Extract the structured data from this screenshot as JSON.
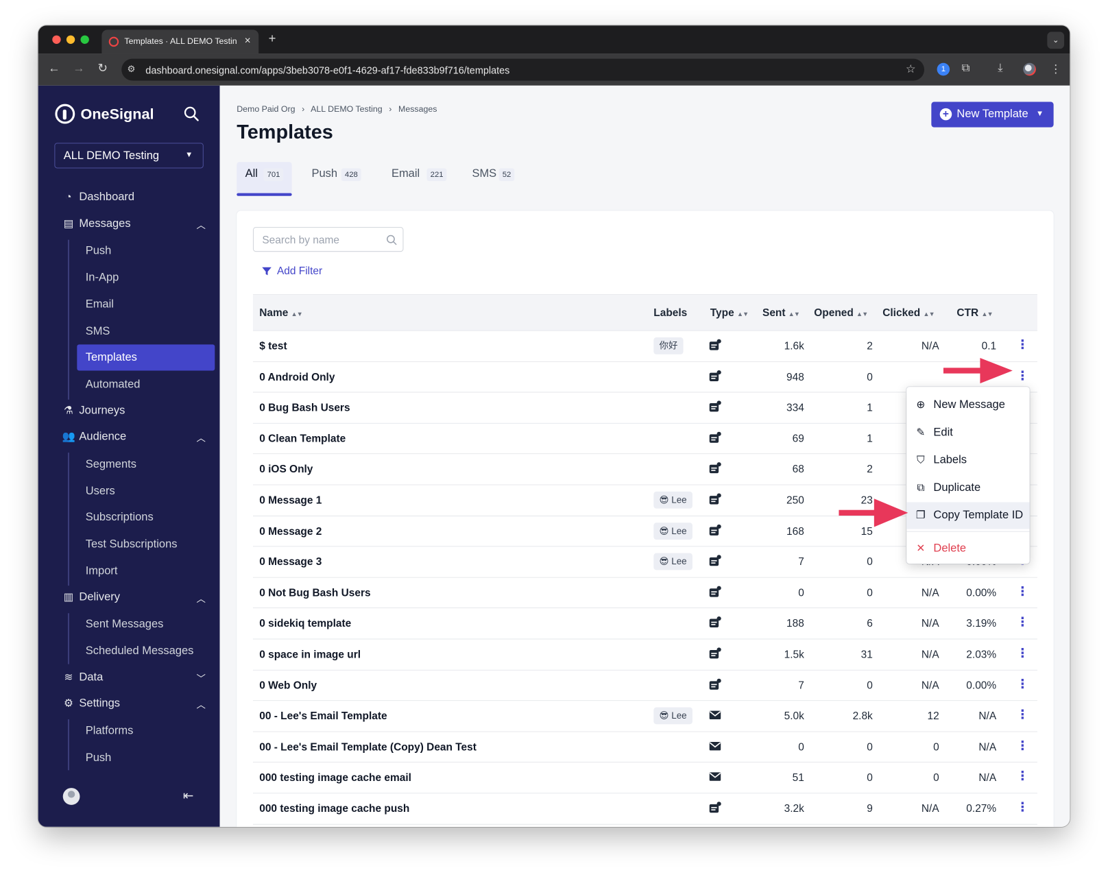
{
  "browser": {
    "tab_title": "Templates · ALL DEMO Testin",
    "url": "dashboard.onesignal.com/apps/3beb3078-e0f1-4629-af17-fde833b9f716/templates"
  },
  "sidebar": {
    "brand": "OneSignal",
    "app_selector": "ALL DEMO Testing",
    "nav": [
      {
        "label": "Dashboard",
        "icon": "dashboard-icon"
      },
      {
        "label": "Messages",
        "icon": "messages-icon",
        "expanded": true,
        "children": [
          {
            "label": "Push"
          },
          {
            "label": "In-App"
          },
          {
            "label": "Email"
          },
          {
            "label": "SMS"
          },
          {
            "label": "Templates",
            "active": true
          },
          {
            "label": "Automated"
          }
        ]
      },
      {
        "label": "Journeys",
        "icon": "journeys-icon"
      },
      {
        "label": "Audience",
        "icon": "audience-icon",
        "expanded": true,
        "children": [
          {
            "label": "Segments"
          },
          {
            "label": "Users"
          },
          {
            "label": "Subscriptions"
          },
          {
            "label": "Test Subscriptions"
          },
          {
            "label": "Import"
          }
        ]
      },
      {
        "label": "Delivery",
        "icon": "delivery-icon",
        "expanded": true,
        "children": [
          {
            "label": "Sent Messages"
          },
          {
            "label": "Scheduled Messages"
          }
        ]
      },
      {
        "label": "Data",
        "icon": "data-icon",
        "expanded": false
      },
      {
        "label": "Settings",
        "icon": "settings-icon",
        "expanded": true,
        "children": [
          {
            "label": "Platforms"
          },
          {
            "label": "Push"
          }
        ]
      }
    ]
  },
  "header": {
    "breadcrumb": [
      "Demo Paid Org",
      "ALL DEMO Testing",
      "Messages"
    ],
    "breadcrumb_sep": "›",
    "title": "Templates",
    "new_template_label": "New Template"
  },
  "tabs": [
    {
      "label": "All",
      "count": "701",
      "active": true
    },
    {
      "label": "Push",
      "count": "428"
    },
    {
      "label": "Email",
      "count": "221"
    },
    {
      "label": "SMS",
      "count": "52"
    }
  ],
  "search": {
    "placeholder": "Search by name"
  },
  "filter": {
    "label": "Add Filter"
  },
  "table": {
    "columns": [
      "Name",
      "Labels",
      "Type",
      "Sent",
      "Opened",
      "Clicked",
      "CTR"
    ],
    "rows": [
      {
        "name": "$ test",
        "label": "你好",
        "type": "push",
        "sent": "1.6k",
        "opened": "2",
        "clicked": "N/A",
        "ctr": "0.1"
      },
      {
        "name": "0 Android Only",
        "label": "",
        "type": "push",
        "sent": "948",
        "opened": "0",
        "clicked": "",
        "ctr": ""
      },
      {
        "name": "0 Bug Bash Users",
        "label": "",
        "type": "push",
        "sent": "334",
        "opened": "1",
        "clicked": "",
        "ctr": ""
      },
      {
        "name": "0 Clean Template",
        "label": "",
        "type": "push",
        "sent": "69",
        "opened": "1",
        "clicked": "",
        "ctr": ""
      },
      {
        "name": "0 iOS Only",
        "label": "",
        "type": "push",
        "sent": "68",
        "opened": "2",
        "clicked": "",
        "ctr": ""
      },
      {
        "name": "0 Message 1",
        "label": "😎 Lee",
        "type": "push",
        "sent": "250",
        "opened": "23",
        "clicked": "",
        "ctr": ""
      },
      {
        "name": "0 Message 2",
        "label": "😎 Lee",
        "type": "push",
        "sent": "168",
        "opened": "15",
        "clicked": "",
        "ctr": ""
      },
      {
        "name": "0 Message 3",
        "label": "😎 Lee",
        "type": "push",
        "sent": "7",
        "opened": "0",
        "clicked": "N/A",
        "ctr": "0.00%"
      },
      {
        "name": "0 Not Bug Bash Users",
        "label": "",
        "type": "push",
        "sent": "0",
        "opened": "0",
        "clicked": "N/A",
        "ctr": "0.00%"
      },
      {
        "name": "0 sidekiq template",
        "label": "",
        "type": "push",
        "sent": "188",
        "opened": "6",
        "clicked": "N/A",
        "ctr": "3.19%"
      },
      {
        "name": "0 space in image url",
        "label": "",
        "type": "push",
        "sent": "1.5k",
        "opened": "31",
        "clicked": "N/A",
        "ctr": "2.03%"
      },
      {
        "name": "0 Web Only",
        "label": "",
        "type": "push",
        "sent": "7",
        "opened": "0",
        "clicked": "N/A",
        "ctr": "0.00%"
      },
      {
        "name": "00 - Lee's Email Template",
        "label": "😎 Lee",
        "type": "email",
        "sent": "5.0k",
        "opened": "2.8k",
        "clicked": "12",
        "ctr": "N/A"
      },
      {
        "name": "00 - Lee's Email Template (Copy) Dean Test",
        "label": "",
        "type": "email",
        "sent": "0",
        "opened": "0",
        "clicked": "0",
        "ctr": "N/A"
      },
      {
        "name": "000 testing image cache email",
        "label": "",
        "type": "email",
        "sent": "51",
        "opened": "0",
        "clicked": "0",
        "ctr": "N/A"
      },
      {
        "name": "000 testing image cache push",
        "label": "",
        "type": "push",
        "sent": "3.2k",
        "opened": "9",
        "clicked": "N/A",
        "ctr": "0.27%"
      }
    ]
  },
  "row_menu": {
    "items": [
      {
        "label": "New Message",
        "icon": "plus-circle-icon"
      },
      {
        "label": "Edit",
        "icon": "pencil-icon"
      },
      {
        "label": "Labels",
        "icon": "tag-icon"
      },
      {
        "label": "Duplicate",
        "icon": "duplicate-icon"
      },
      {
        "label": "Copy Template ID",
        "icon": "copy-icon",
        "highlighted": true
      },
      {
        "label": "Delete",
        "icon": "close-icon",
        "danger": true
      }
    ]
  },
  "colors": {
    "accent": "#4345c9",
    "sidebar": "#1c1d4c",
    "annotation_arrow": "#e8375a",
    "danger": "#e03f4f"
  }
}
